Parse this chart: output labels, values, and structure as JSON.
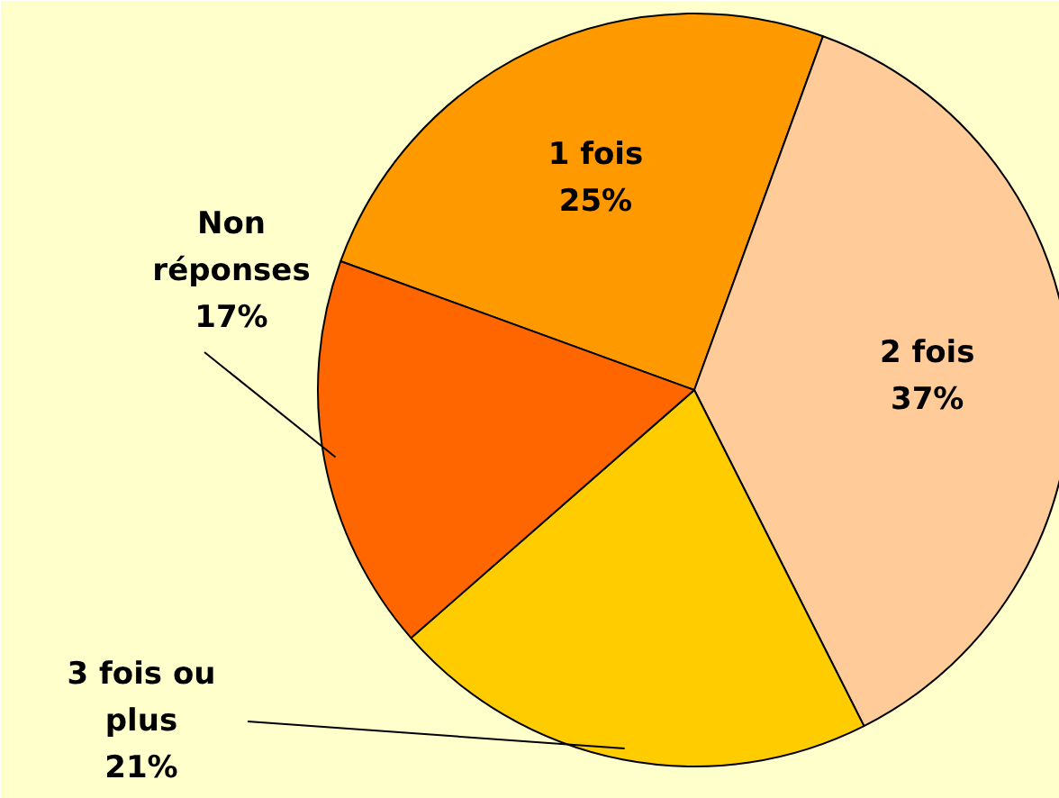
{
  "chart_data": {
    "type": "pie",
    "categories": [
      "1 fois",
      "2 fois",
      "3 fois ou plus",
      "Non réponses"
    ],
    "values": [
      25,
      37,
      21,
      17
    ],
    "colors": [
      "#ff9900",
      "#ffcc99",
      "#ffcc00",
      "#ff6600"
    ],
    "value_labels": [
      "25%",
      "37%",
      "21%",
      "17%"
    ]
  }
}
